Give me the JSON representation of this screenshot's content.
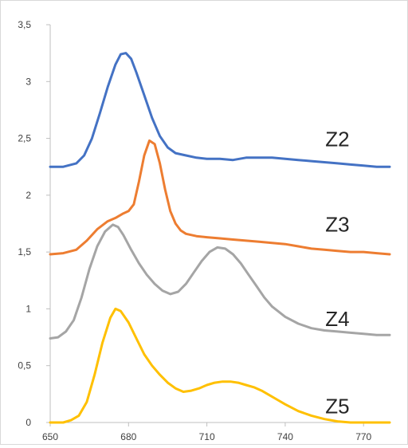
{
  "chart_data": {
    "type": "line",
    "title": "",
    "xlabel": "",
    "ylabel": "",
    "xlim": [
      650,
      780
    ],
    "ylim": [
      0,
      3.5
    ],
    "x_ticks": [
      650,
      680,
      710,
      740,
      770
    ],
    "x_tick_labels": [
      "650",
      "680",
      "710",
      "740",
      "770"
    ],
    "y_ticks": [
      0,
      0.5,
      1,
      1.5,
      2,
      2.5,
      3,
      3.5
    ],
    "y_tick_labels": [
      "0",
      "0,5",
      "1",
      "1,5",
      "2",
      "2,5",
      "3",
      "3,5"
    ],
    "grid": false,
    "legend": "none",
    "series": [
      {
        "name": "Z2",
        "color": "#4472C4",
        "label_at": [
          760,
          2.5
        ],
        "points": [
          [
            650,
            2.25
          ],
          [
            655,
            2.25
          ],
          [
            660,
            2.28
          ],
          [
            663,
            2.35
          ],
          [
            666,
            2.5
          ],
          [
            669,
            2.72
          ],
          [
            672,
            2.95
          ],
          [
            675,
            3.15
          ],
          [
            677,
            3.24
          ],
          [
            679,
            3.25
          ],
          [
            681,
            3.2
          ],
          [
            683,
            3.08
          ],
          [
            686,
            2.88
          ],
          [
            689,
            2.68
          ],
          [
            692,
            2.52
          ],
          [
            695,
            2.42
          ],
          [
            698,
            2.37
          ],
          [
            702,
            2.35
          ],
          [
            706,
            2.33
          ],
          [
            710,
            2.32
          ],
          [
            715,
            2.32
          ],
          [
            720,
            2.31
          ],
          [
            725,
            2.33
          ],
          [
            730,
            2.33
          ],
          [
            735,
            2.33
          ],
          [
            740,
            2.32
          ],
          [
            745,
            2.31
          ],
          [
            750,
            2.3
          ],
          [
            755,
            2.29
          ],
          [
            760,
            2.28
          ],
          [
            765,
            2.27
          ],
          [
            770,
            2.26
          ],
          [
            775,
            2.25
          ],
          [
            780,
            2.25
          ]
        ]
      },
      {
        "name": "Z3",
        "color": "#ED7D31",
        "label_at": [
          760,
          1.75
        ],
        "points": [
          [
            650,
            1.48
          ],
          [
            655,
            1.49
          ],
          [
            660,
            1.52
          ],
          [
            664,
            1.6
          ],
          [
            668,
            1.7
          ],
          [
            672,
            1.77
          ],
          [
            675,
            1.8
          ],
          [
            678,
            1.84
          ],
          [
            680,
            1.86
          ],
          [
            682,
            1.92
          ],
          [
            684,
            2.12
          ],
          [
            686,
            2.35
          ],
          [
            688,
            2.48
          ],
          [
            690,
            2.45
          ],
          [
            692,
            2.28
          ],
          [
            694,
            2.05
          ],
          [
            696,
            1.86
          ],
          [
            698,
            1.75
          ],
          [
            700,
            1.69
          ],
          [
            702,
            1.66
          ],
          [
            706,
            1.64
          ],
          [
            710,
            1.63
          ],
          [
            715,
            1.62
          ],
          [
            720,
            1.61
          ],
          [
            725,
            1.6
          ],
          [
            730,
            1.59
          ],
          [
            735,
            1.58
          ],
          [
            740,
            1.57
          ],
          [
            745,
            1.55
          ],
          [
            750,
            1.53
          ],
          [
            755,
            1.52
          ],
          [
            760,
            1.51
          ],
          [
            765,
            1.5
          ],
          [
            770,
            1.5
          ],
          [
            775,
            1.49
          ],
          [
            780,
            1.48
          ]
        ]
      },
      {
        "name": "Z4",
        "color": "#A5A5A5",
        "label_at": [
          760,
          0.92
        ],
        "points": [
          [
            650,
            0.74
          ],
          [
            653,
            0.75
          ],
          [
            656,
            0.8
          ],
          [
            659,
            0.9
          ],
          [
            662,
            1.1
          ],
          [
            665,
            1.35
          ],
          [
            668,
            1.55
          ],
          [
            671,
            1.68
          ],
          [
            674,
            1.74
          ],
          [
            676,
            1.72
          ],
          [
            678,
            1.65
          ],
          [
            681,
            1.52
          ],
          [
            684,
            1.4
          ],
          [
            687,
            1.3
          ],
          [
            690,
            1.22
          ],
          [
            693,
            1.16
          ],
          [
            696,
            1.13
          ],
          [
            699,
            1.15
          ],
          [
            702,
            1.22
          ],
          [
            705,
            1.32
          ],
          [
            708,
            1.42
          ],
          [
            711,
            1.5
          ],
          [
            714,
            1.54
          ],
          [
            717,
            1.53
          ],
          [
            720,
            1.48
          ],
          [
            723,
            1.4
          ],
          [
            726,
            1.3
          ],
          [
            729,
            1.2
          ],
          [
            732,
            1.1
          ],
          [
            735,
            1.02
          ],
          [
            740,
            0.93
          ],
          [
            745,
            0.87
          ],
          [
            750,
            0.83
          ],
          [
            755,
            0.81
          ],
          [
            760,
            0.8
          ],
          [
            765,
            0.79
          ],
          [
            770,
            0.78
          ],
          [
            775,
            0.77
          ],
          [
            780,
            0.77
          ]
        ]
      },
      {
        "name": "Z5",
        "color": "#FFC000",
        "label_at": [
          760,
          0.15
        ],
        "points": [
          [
            650,
            0
          ],
          [
            655,
            0
          ],
          [
            658,
            0.02
          ],
          [
            661,
            0.06
          ],
          [
            664,
            0.18
          ],
          [
            667,
            0.42
          ],
          [
            670,
            0.7
          ],
          [
            673,
            0.92
          ],
          [
            675,
            1.0
          ],
          [
            677,
            0.98
          ],
          [
            680,
            0.88
          ],
          [
            683,
            0.74
          ],
          [
            686,
            0.6
          ],
          [
            689,
            0.5
          ],
          [
            692,
            0.42
          ],
          [
            695,
            0.35
          ],
          [
            698,
            0.3
          ],
          [
            701,
            0.27
          ],
          [
            704,
            0.28
          ],
          [
            707,
            0.3
          ],
          [
            710,
            0.33
          ],
          [
            713,
            0.35
          ],
          [
            716,
            0.36
          ],
          [
            719,
            0.36
          ],
          [
            722,
            0.35
          ],
          [
            725,
            0.33
          ],
          [
            728,
            0.31
          ],
          [
            731,
            0.28
          ],
          [
            734,
            0.24
          ],
          [
            737,
            0.2
          ],
          [
            740,
            0.16
          ],
          [
            745,
            0.1
          ],
          [
            750,
            0.06
          ],
          [
            755,
            0.03
          ],
          [
            760,
            0.01
          ],
          [
            765,
            0
          ],
          [
            770,
            0
          ],
          [
            775,
            0
          ],
          [
            780,
            0
          ]
        ]
      }
    ]
  }
}
